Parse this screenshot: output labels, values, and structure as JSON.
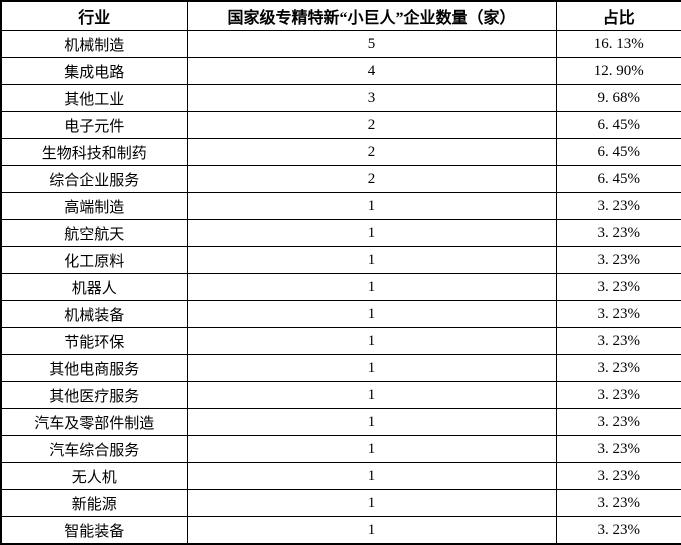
{
  "colors": {
    "border": "#000000",
    "text": "#000000",
    "background": "#ffffff"
  },
  "table": {
    "columns": [
      {
        "label": "行业"
      },
      {
        "label": "国家级专精特新“小巨人”企业数量（家）"
      },
      {
        "label": "占比"
      }
    ],
    "rows": [
      {
        "industry": "机械制造",
        "count": "5",
        "share": "16. 13%"
      },
      {
        "industry": "集成电路",
        "count": "4",
        "share": "12. 90%"
      },
      {
        "industry": "其他工业",
        "count": "3",
        "share": "9. 68%"
      },
      {
        "industry": "电子元件",
        "count": "2",
        "share": "6. 45%"
      },
      {
        "industry": "生物科技和制药",
        "count": "2",
        "share": "6. 45%"
      },
      {
        "industry": "综合企业服务",
        "count": "2",
        "share": "6. 45%"
      },
      {
        "industry": "高端制造",
        "count": "1",
        "share": "3. 23%"
      },
      {
        "industry": "航空航天",
        "count": "1",
        "share": "3. 23%"
      },
      {
        "industry": "化工原料",
        "count": "1",
        "share": "3. 23%"
      },
      {
        "industry": "机器人",
        "count": "1",
        "share": "3. 23%"
      },
      {
        "industry": "机械装备",
        "count": "1",
        "share": "3. 23%"
      },
      {
        "industry": "节能环保",
        "count": "1",
        "share": "3. 23%"
      },
      {
        "industry": "其他电商服务",
        "count": "1",
        "share": "3. 23%"
      },
      {
        "industry": "其他医疗服务",
        "count": "1",
        "share": "3. 23%"
      },
      {
        "industry": "汽车及零部件制造",
        "count": "1",
        "share": "3. 23%"
      },
      {
        "industry": "汽车综合服务",
        "count": "1",
        "share": "3. 23%"
      },
      {
        "industry": "无人机",
        "count": "1",
        "share": "3. 23%"
      },
      {
        "industry": "新能源",
        "count": "1",
        "share": "3. 23%"
      },
      {
        "industry": "智能装备",
        "count": "1",
        "share": "3. 23%"
      }
    ]
  }
}
